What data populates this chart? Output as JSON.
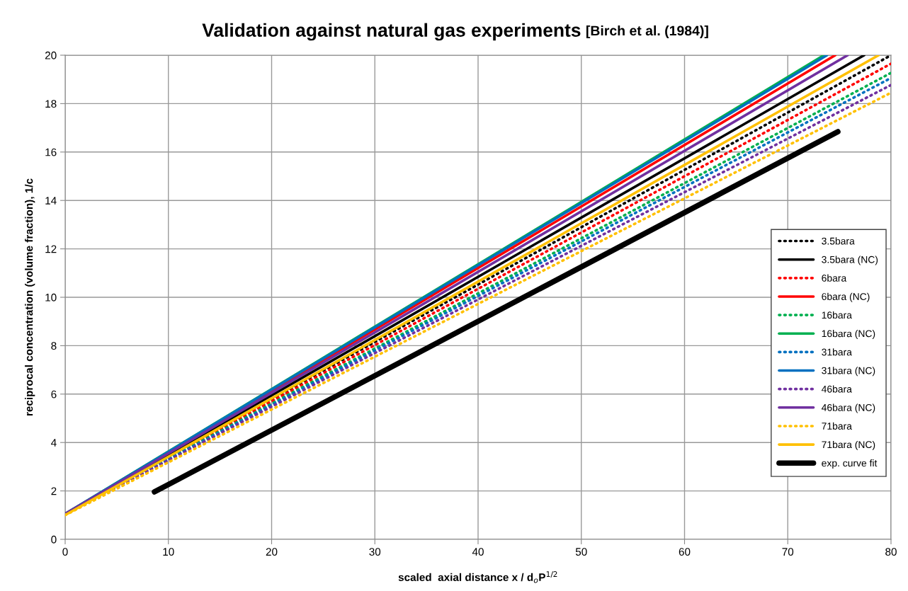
{
  "chart_data": {
    "type": "line",
    "title": "Validation against natural gas experiments",
    "subtitle": "[Birch et al. (1984)]",
    "xlabel": "scaled  axial distance x / d$_{o}$P$^{1/2}$",
    "ylabel": "reciprocal concentration (volume fraction), 1/c",
    "xlim": [
      0,
      80
    ],
    "xticks": [
      0,
      10,
      20,
      30,
      40,
      50,
      60,
      70,
      80
    ],
    "ylim": [
      0,
      20
    ],
    "yticks": [
      0,
      2,
      4,
      6,
      8,
      10,
      12,
      14,
      16,
      18,
      20
    ],
    "grid": true,
    "legend": "right",
    "marker": "none",
    "series": [
      {
        "name": "3.5bara",
        "color": "#000000",
        "line_style": "dotted",
        "x": [
          0,
          80
        ],
        "values": [
          1.05,
          20.0
        ]
      },
      {
        "name": "3.5bara (NC)",
        "color": "#000000",
        "line_style": "solid",
        "x": [
          0,
          77.4
        ],
        "values": [
          1.05,
          20.0
        ]
      },
      {
        "name": "6bara",
        "color": "#ff0000",
        "line_style": "dotted",
        "x": [
          0,
          80
        ],
        "values": [
          1.05,
          19.65
        ]
      },
      {
        "name": "6bara (NC)",
        "color": "#ff0000",
        "line_style": "solid",
        "x": [
          0,
          74.6
        ],
        "values": [
          1.05,
          20.0
        ]
      },
      {
        "name": "16bara",
        "color": "#00b050",
        "line_style": "dotted",
        "x": [
          0,
          80
        ],
        "values": [
          1.05,
          19.27
        ]
      },
      {
        "name": "16bara (NC)",
        "color": "#00b050",
        "line_style": "solid",
        "x": [
          0,
          73.5
        ],
        "values": [
          1.05,
          20.0
        ]
      },
      {
        "name": "31bara",
        "color": "#0070c0",
        "line_style": "dotted",
        "x": [
          0,
          80
        ],
        "values": [
          1.05,
          19.06
        ]
      },
      {
        "name": "31bara (NC)",
        "color": "#0070c0",
        "line_style": "solid",
        "x": [
          0,
          73.8
        ],
        "values": [
          1.05,
          20.0
        ]
      },
      {
        "name": "46bara",
        "color": "#7030a0",
        "line_style": "dotted",
        "x": [
          0,
          80
        ],
        "values": [
          1.05,
          18.77
        ]
      },
      {
        "name": "46bara (NC)",
        "color": "#7030a0",
        "line_style": "solid",
        "x": [
          0,
          75.8
        ],
        "values": [
          1.05,
          20.0
        ]
      },
      {
        "name": "71bara",
        "color": "#ffc000",
        "line_style": "dotted",
        "x": [
          0,
          80
        ],
        "values": [
          1.0,
          18.45
        ]
      },
      {
        "name": "71bara (NC)",
        "color": "#ffc000",
        "line_style": "solid",
        "x": [
          0,
          78.8
        ],
        "values": [
          1.0,
          20.0
        ]
      },
      {
        "name": "exp. curve fit",
        "color": "#000000",
        "line_style": "solid",
        "x": [
          8.65,
          74.85
        ],
        "values": [
          1.96,
          16.84
        ]
      }
    ]
  }
}
